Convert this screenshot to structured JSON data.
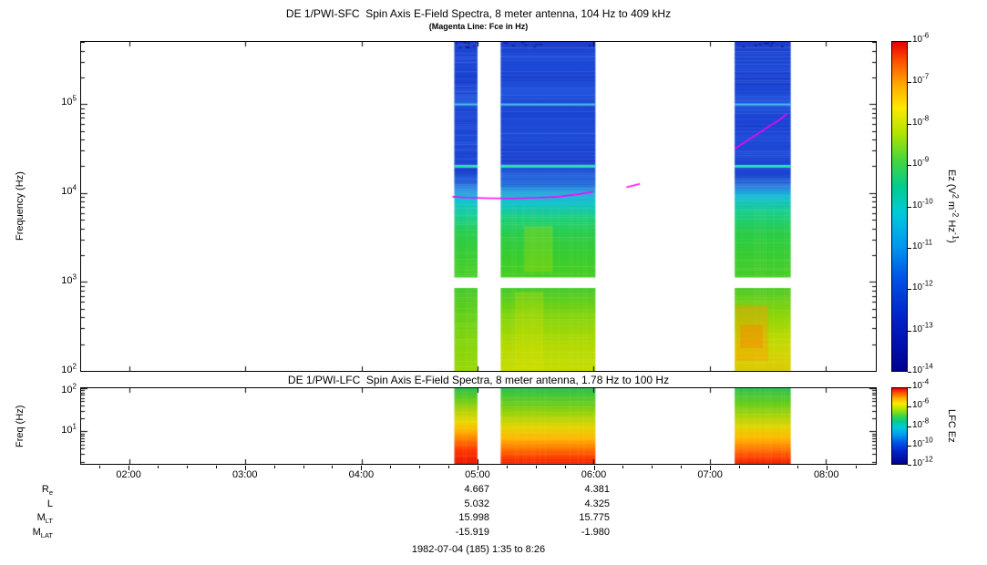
{
  "page": {
    "bg": "#ffffff"
  },
  "footer": {
    "date_range": "1982-07-04 (185) 1:35 to 8:26"
  },
  "colormap_stops": [
    [
      0.0,
      "#e40000"
    ],
    [
      0.06,
      "#ff5200"
    ],
    [
      0.13,
      "#ffaa00"
    ],
    [
      0.2,
      "#ffe800"
    ],
    [
      0.28,
      "#aee400"
    ],
    [
      0.36,
      "#45d63e"
    ],
    [
      0.44,
      "#00cc8e"
    ],
    [
      0.52,
      "#00c9da"
    ],
    [
      0.62,
      "#0098f0"
    ],
    [
      0.72,
      "#0052e6"
    ],
    [
      0.84,
      "#0022c8"
    ],
    [
      1.0,
      "#000092"
    ]
  ],
  "ephemeris": {
    "rows": [
      {
        "label_main": "R",
        "label_sub": "e",
        "col1": "4.667",
        "col2": "4.381"
      },
      {
        "label_main": "L",
        "label_sub": "",
        "col1": "5.032",
        "col2": "4.325"
      },
      {
        "label_main": "M",
        "label_sub": "LT",
        "col1": "15.998",
        "col2": "15.775"
      },
      {
        "label_main": "M",
        "label_sub": "LAT",
        "col1": "-15.919",
        "col2": "-1.980"
      }
    ]
  },
  "chart_data": [
    {
      "type": "heatmap",
      "instrument": "DE 1/PWI-SFC",
      "title": "DE 1/PWI-SFC  Spin Axis E-Field Spectra, 8 meter antenna, 104 Hz to 409 kHz",
      "subtitle": "(Magenta Line: Fce in Hz)",
      "ylabel": "Frequency (Hz)",
      "x_range_minutes": [
        95,
        506
      ],
      "x_tick_minutes": [
        120,
        180,
        240,
        300,
        360,
        420,
        480
      ],
      "x_tick_labels": [
        "02:00",
        "03:00",
        "04:00",
        "05:00",
        "06:00",
        "07:00",
        "08:00"
      ],
      "y_log10_range": [
        2.0,
        5.7
      ],
      "y_tick_exponents": [
        5,
        4,
        3,
        2
      ],
      "colorbar": {
        "label": "Ez (V^2 m^-2 Hz^-1)",
        "label_parts": [
          {
            "t": "Ez (V"
          },
          {
            "s": "2"
          },
          {
            "t": " m"
          },
          {
            "s": "-2"
          },
          {
            "t": " Hz"
          },
          {
            "s": "-1"
          },
          {
            "t": ")"
          }
        ],
        "tick_exponents": [
          -6,
          -7,
          -8,
          -9,
          -10,
          -11,
          -12,
          -13,
          -14
        ]
      },
      "blue_region_frac": 0.44,
      "gap_band_frac": [
        0.716,
        0.748
      ],
      "stripe_lines": [
        {
          "frac": 0.19,
          "color": "#4ec4f2",
          "w": 2
        },
        {
          "frac": 0.378,
          "color": "#2de2bd",
          "w": 3
        }
      ],
      "bursts": [
        {
          "t_start": "04:48",
          "t_end": "05:00",
          "t_start_min": 288,
          "t_end_min": 300,
          "gradient": [
            [
              0,
              "#1b40d0"
            ],
            [
              0.06,
              "#1f4cda"
            ],
            [
              0.12,
              "#1b42d3"
            ],
            [
              0.17,
              "#2257de"
            ],
            [
              0.23,
              "#1b43d4"
            ],
            [
              0.31,
              "#1e4cd9"
            ],
            [
              0.39,
              "#1b42d2"
            ],
            [
              0.43,
              "#2a6de0"
            ],
            [
              0.46,
              "#2fa5e2"
            ],
            [
              0.48,
              "#12c4d4"
            ],
            [
              0.53,
              "#16cf92"
            ],
            [
              0.58,
              "#27cc4e"
            ],
            [
              0.64,
              "#35cc36"
            ],
            [
              0.7,
              "#44ce28"
            ],
            [
              0.74,
              "#41ca30"
            ],
            [
              0.82,
              "#5ecf18"
            ],
            [
              0.9,
              "#7fd40c"
            ],
            [
              1,
              "#98d806"
            ]
          ],
          "patches": []
        },
        {
          "t_start": "05:12",
          "t_end": "06:01",
          "t_start_min": 312,
          "t_end_min": 361,
          "gradient": [
            [
              0,
              "#1b40d0"
            ],
            [
              0.05,
              "#2050dc"
            ],
            [
              0.1,
              "#1b43d4"
            ],
            [
              0.15,
              "#2156dd"
            ],
            [
              0.21,
              "#1b42d2"
            ],
            [
              0.28,
              "#1f4eda"
            ],
            [
              0.36,
              "#1b42d2"
            ],
            [
              0.43,
              "#2a70e0"
            ],
            [
              0.46,
              "#2aaade"
            ],
            [
              0.49,
              "#12c4cc"
            ],
            [
              0.54,
              "#1ccf74"
            ],
            [
              0.59,
              "#2bcc46"
            ],
            [
              0.66,
              "#3bcd2e"
            ],
            [
              0.72,
              "#49ce22"
            ],
            [
              0.75,
              "#46cb2c"
            ],
            [
              0.83,
              "#80d40c"
            ],
            [
              0.92,
              "#b2da03"
            ],
            [
              1,
              "#c6dd00"
            ]
          ],
          "patches": [
            {
              "bx0": 0.25,
              "bx1": 0.55,
              "f0": 0.56,
              "f1": 0.7,
              "color": "rgba(190,220,0,0.30)"
            },
            {
              "bx0": 0.15,
              "bx1": 0.45,
              "f0": 0.76,
              "f1": 1.0,
              "color": "rgba(225,225,0,0.25)"
            }
          ]
        },
        {
          "t_start": "07:13",
          "t_end": "07:42",
          "t_start_min": 433,
          "t_end_min": 462,
          "gradient": [
            [
              0,
              "#1b40d0"
            ],
            [
              0.06,
              "#1e4bd8"
            ],
            [
              0.12,
              "#1b42d3"
            ],
            [
              0.18,
              "#2154dd"
            ],
            [
              0.25,
              "#1b43d4"
            ],
            [
              0.33,
              "#1e4cd9"
            ],
            [
              0.4,
              "#1b42d2"
            ],
            [
              0.44,
              "#2e80e0"
            ],
            [
              0.47,
              "#16bed6"
            ],
            [
              0.52,
              "#18cf86"
            ],
            [
              0.58,
              "#2acc48"
            ],
            [
              0.65,
              "#38cc32"
            ],
            [
              0.71,
              "#46ce26"
            ],
            [
              0.75,
              "#4fc926"
            ],
            [
              0.83,
              "#8cd60a"
            ],
            [
              0.9,
              "#bada02"
            ],
            [
              0.95,
              "#d2d400"
            ],
            [
              1,
              "#dcc800"
            ]
          ],
          "patches": [
            {
              "bx0": 0.02,
              "bx1": 0.6,
              "f0": 0.8,
              "f1": 0.97,
              "color": "rgba(255,150,0,0.40)"
            },
            {
              "bx0": 0.1,
              "bx1": 0.5,
              "f0": 0.86,
              "f1": 0.93,
              "color": "rgba(255,120,0,0.35)"
            }
          ]
        }
      ],
      "fce_line": {
        "color": "#ff00ff",
        "segments": [
          [
            [
              287,
              9100
            ],
            [
              294,
              8900
            ],
            [
              305,
              8750
            ],
            [
              318,
              8700
            ],
            [
              330,
              8850
            ],
            [
              342,
              9100
            ],
            [
              352,
              9700
            ],
            [
              360,
              10400
            ]
          ],
          [
            [
              377,
              11600
            ],
            [
              384,
              12700
            ]
          ],
          [
            [
              433,
              31500
            ],
            [
              438,
              37000
            ],
            [
              444,
              45000
            ],
            [
              450,
              55000
            ],
            [
              456,
              66000
            ],
            [
              460,
              78000
            ]
          ]
        ]
      }
    },
    {
      "type": "heatmap",
      "instrument": "DE 1/PWI-LFC",
      "title": "DE 1/PWI-LFC  Spin Axis E-Field Spectra, 8 meter antenna, 1.78 Hz to 100 Hz",
      "ylabel": "Freq (Hz)",
      "x_range_minutes": [
        95,
        506
      ],
      "x_tick_minutes": [
        120,
        180,
        240,
        300,
        360,
        420,
        480
      ],
      "x_tick_labels": [
        "02:00",
        "03:00",
        "04:00",
        "05:00",
        "06:00",
        "07:00",
        "08:00"
      ],
      "y_log10_range": [
        0.25,
        2.0
      ],
      "y_tick_exponents": [
        2,
        1
      ],
      "colorbar": {
        "label": "LFC Ez",
        "tick_exponents": [
          -4,
          -6,
          -8,
          -10,
          -12
        ]
      },
      "bursts": [
        {
          "t_start": "04:48",
          "t_end": "05:00",
          "t_start_min": 288,
          "t_end_min": 300,
          "gradient": [
            [
              0,
              "#2ec24e"
            ],
            [
              0.15,
              "#66cc1c"
            ],
            [
              0.3,
              "#b4d406"
            ],
            [
              0.45,
              "#ecd800"
            ],
            [
              0.58,
              "#ffb000"
            ],
            [
              0.7,
              "#ff7000"
            ],
            [
              0.82,
              "#ff3800"
            ],
            [
              1,
              "#ee1400"
            ]
          ],
          "patches": []
        },
        {
          "t_start": "05:12",
          "t_end": "06:01",
          "t_start_min": 312,
          "t_end_min": 361,
          "gradient": [
            [
              0,
              "#2ec24e"
            ],
            [
              0.18,
              "#5ecc20"
            ],
            [
              0.36,
              "#a6d408"
            ],
            [
              0.52,
              "#e4d400"
            ],
            [
              0.66,
              "#ffb800"
            ],
            [
              0.78,
              "#ff8000"
            ],
            [
              0.9,
              "#ff4600"
            ],
            [
              1,
              "#f02000"
            ]
          ],
          "patches": []
        },
        {
          "t_start": "07:13",
          "t_end": "07:42",
          "t_start_min": 433,
          "t_end_min": 462,
          "gradient": [
            [
              0,
              "#2ec24e"
            ],
            [
              0.18,
              "#5ecc20"
            ],
            [
              0.36,
              "#a6d408"
            ],
            [
              0.52,
              "#e4d400"
            ],
            [
              0.66,
              "#ffb800"
            ],
            [
              0.78,
              "#ff8000"
            ],
            [
              0.9,
              "#ff4600"
            ],
            [
              1,
              "#f02000"
            ]
          ],
          "patches": []
        }
      ]
    }
  ]
}
